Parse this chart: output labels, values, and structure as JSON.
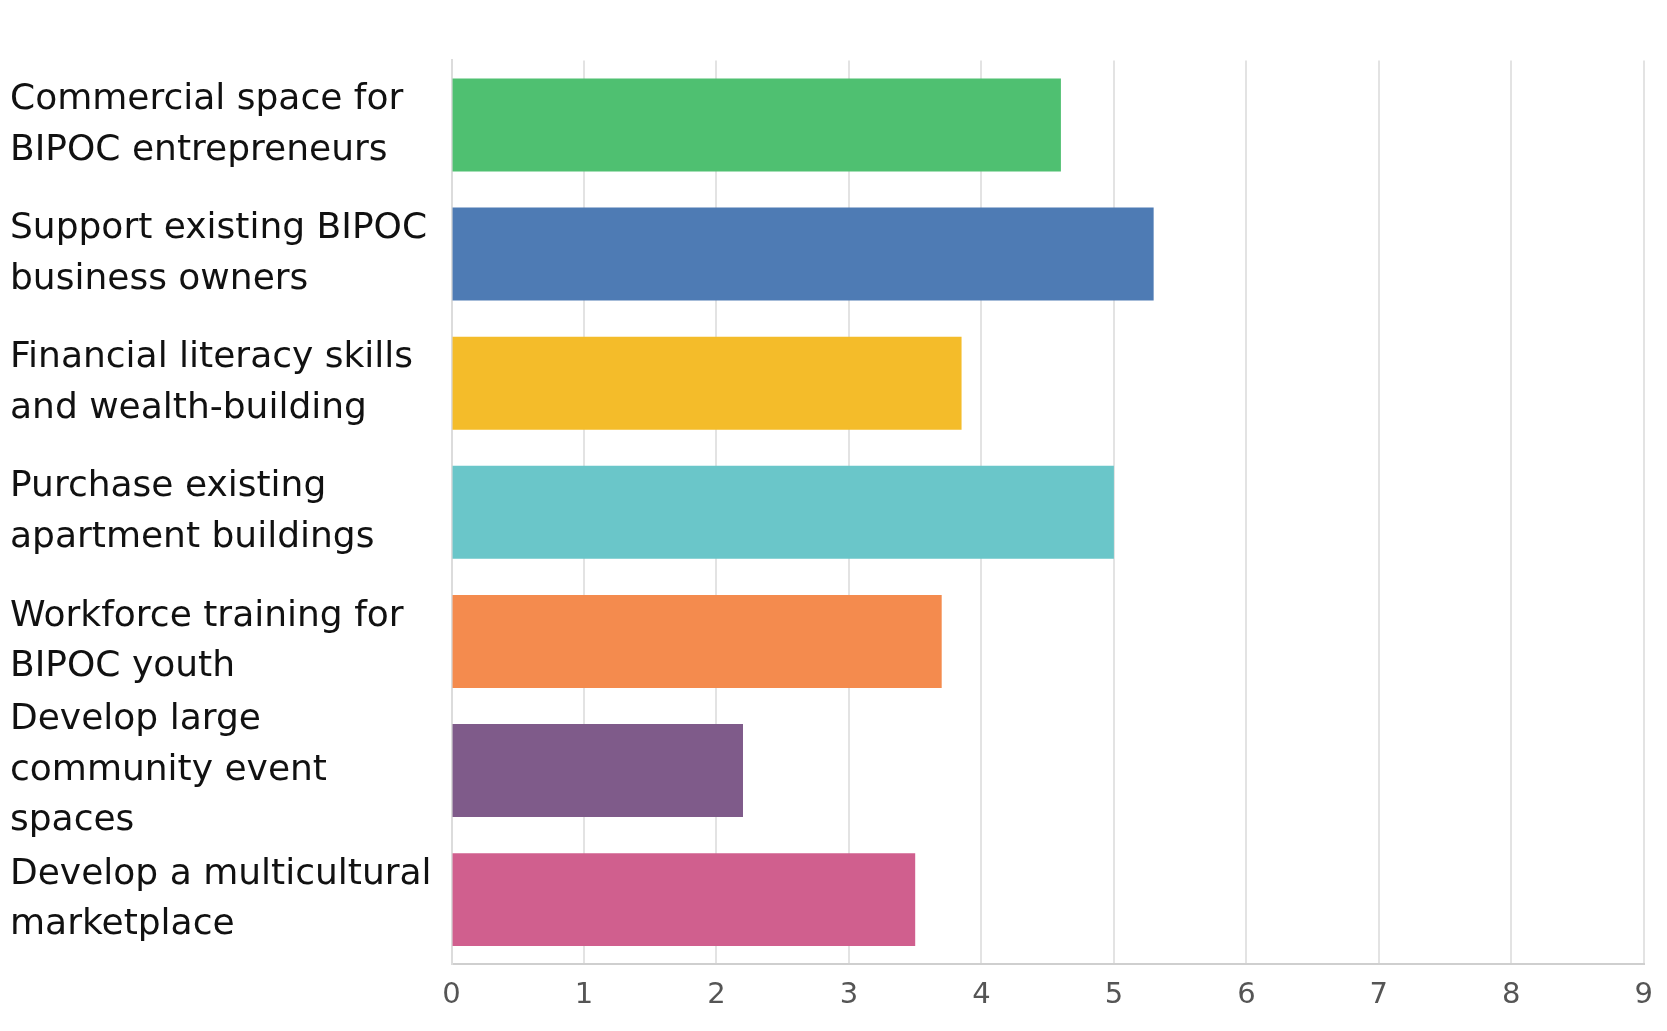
{
  "chart_data": {
    "type": "bar",
    "orientation": "horizontal",
    "categories": [
      "Commercial space for BIPOC entrepreneurs",
      "Support existing BIPOC business owners",
      "Financial literacy skills and wealth-building",
      "Purchase existing apartment buildings",
      "Workforce training for BIPOC youth",
      "Develop large community event spaces",
      "Develop a multicultural marketplace"
    ],
    "values": [
      4.6,
      5.3,
      3.85,
      5.0,
      3.7,
      2.2,
      3.5
    ],
    "colors": [
      "#4fc071",
      "#4e7bb4",
      "#f4bc2a",
      "#6ac6c9",
      "#f48b4e",
      "#7f5b8a",
      "#d05f8e"
    ],
    "xlim": [
      0,
      9
    ],
    "xticks": [
      0,
      1,
      2,
      3,
      4,
      5,
      6,
      7,
      8,
      9
    ],
    "grid": "x",
    "legend": false
  }
}
